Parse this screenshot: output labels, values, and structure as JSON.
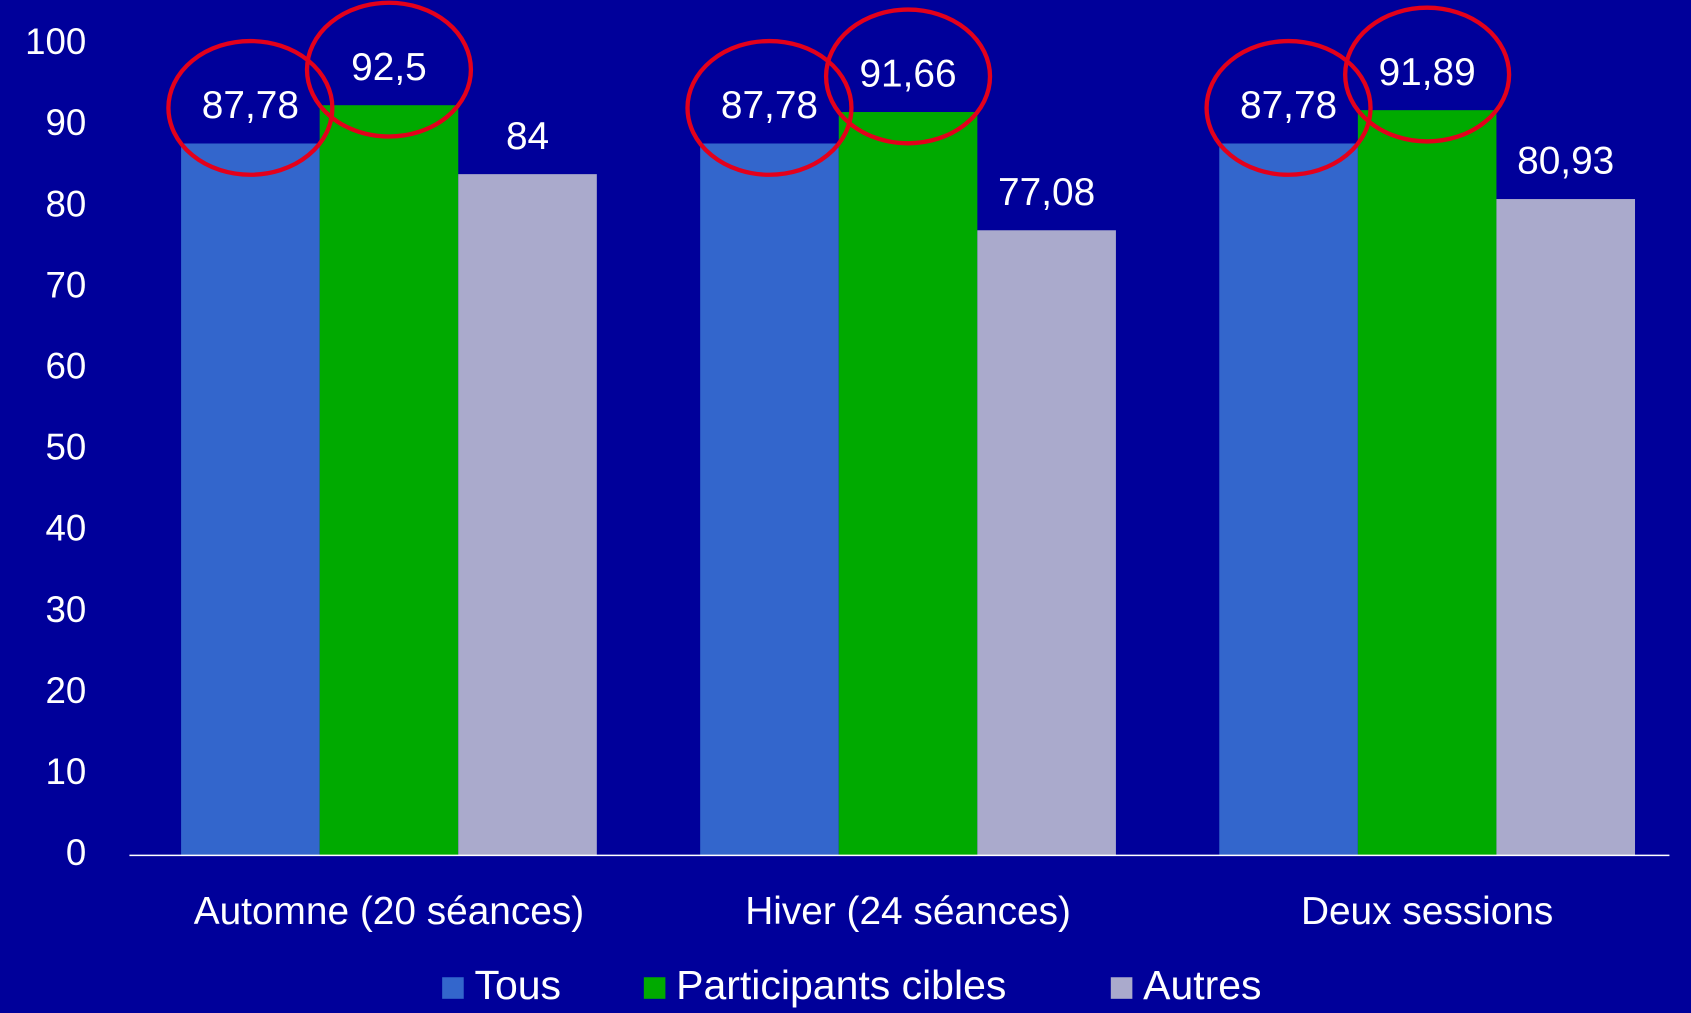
{
  "chart_data": {
    "type": "bar",
    "categories": [
      "Automne (20 séances)",
      "Hiver (24 séances)",
      "Deux sessions"
    ],
    "series": [
      {
        "name": "Tous",
        "color": "#3366cc",
        "values": [
          87.78,
          87.78,
          87.78
        ],
        "value_labels": [
          "87,78",
          "87,78",
          "87,78"
        ]
      },
      {
        "name": "Participants cibles",
        "color": "#00aa00",
        "values": [
          92.5,
          91.66,
          91.89
        ],
        "value_labels": [
          "92,5",
          "91,66",
          "91,89"
        ]
      },
      {
        "name": "Autres",
        "color": "#aaaacc",
        "values": [
          84,
          77.08,
          80.93
        ],
        "value_labels": [
          "84",
          "77,08",
          "80,93"
        ]
      }
    ],
    "ylim": [
      0,
      100
    ],
    "yticks": [
      0,
      10,
      20,
      30,
      40,
      50,
      60,
      70,
      80,
      90,
      100
    ],
    "legend": "bottom",
    "grid": false
  }
}
